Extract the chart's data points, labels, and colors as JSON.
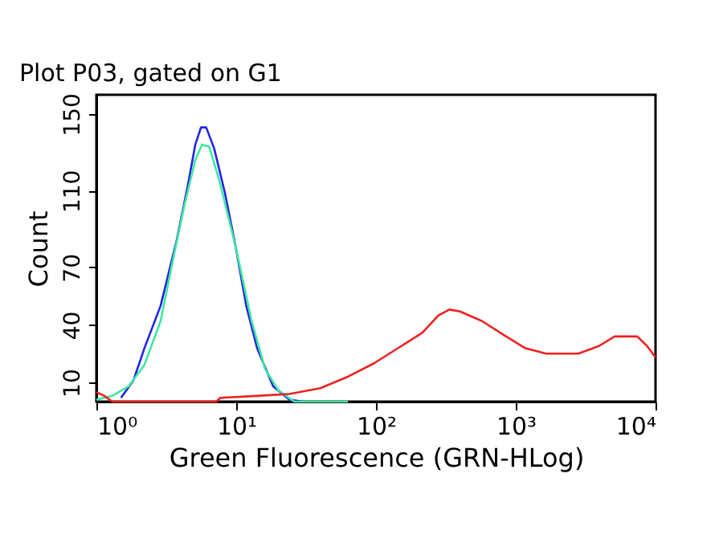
{
  "chart_data": {
    "type": "line",
    "title": "Plot P03, gated on G1",
    "xlabel": "Green Fluorescence (GRN-HLog)",
    "ylabel": "Count",
    "log": "x",
    "xlim": [
      1,
      10000
    ],
    "xticks": [
      {
        "value": 1,
        "label": "10⁰"
      },
      {
        "value": 10,
        "label": "10¹"
      },
      {
        "value": 100,
        "label": "10²"
      },
      {
        "value": 1000,
        "label": "10³"
      },
      {
        "value": 10000,
        "label": "10⁴"
      }
    ],
    "ylim": [
      0,
      160
    ],
    "yticks": [
      10,
      40,
      70,
      110,
      150
    ],
    "series": [
      {
        "color": "#2323e8",
        "x": [
          1.5,
          1.84,
          2.21,
          2.88,
          3.75,
          4.49,
          5.1,
          5.6,
          6.1,
          6.96,
          8.3,
          9.9,
          11.8,
          14.1,
          18.4,
          24,
          30
        ],
        "values": [
          2,
          11,
          28,
          50,
          84,
          112,
          134,
          143,
          143,
          132,
          109,
          81,
          50,
          28,
          8,
          1,
          0
        ]
      },
      {
        "color": "#3ee8a0",
        "x": [
          1,
          1.3,
          1.7,
          2.2,
          2.88,
          3.44,
          4.28,
          5.1,
          5.7,
          6.4,
          7.6,
          9.9,
          12.9,
          16.1,
          20,
          26,
          63
        ],
        "values": [
          1,
          3,
          8,
          19,
          42,
          70,
          103,
          126,
          134,
          133,
          115,
          81,
          42,
          17,
          6,
          0,
          0
        ]
      },
      {
        "color": "#f02020",
        "x": [
          1,
          1.14,
          1.3,
          7.2,
          7.7,
          14,
          24,
          40,
          63,
          97,
          152,
          215,
          280,
          335,
          400,
          575,
          810,
          1160,
          1650,
          2800,
          3940,
          5100,
          7400,
          8700,
          10000
        ],
        "values": [
          5,
          3,
          0,
          0,
          2,
          3,
          4,
          7,
          13,
          20,
          29,
          36,
          45,
          48,
          47,
          42,
          35,
          28,
          25,
          25,
          29,
          34,
          34,
          29,
          23
        ]
      }
    ]
  }
}
